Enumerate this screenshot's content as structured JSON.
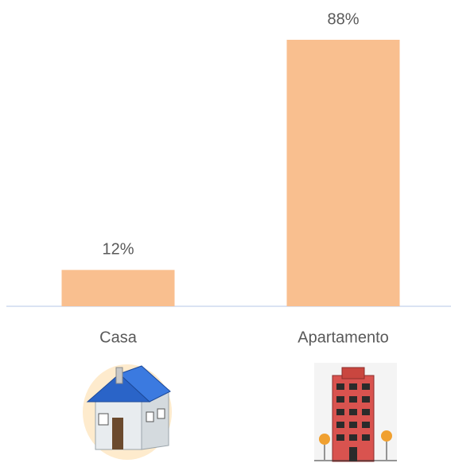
{
  "chart_data": {
    "type": "bar",
    "categories": [
      "Casa",
      "Apartamento"
    ],
    "values": [
      12,
      88
    ],
    "value_labels": [
      "12%",
      "88%"
    ],
    "color": "#f9bf8f"
  }
}
